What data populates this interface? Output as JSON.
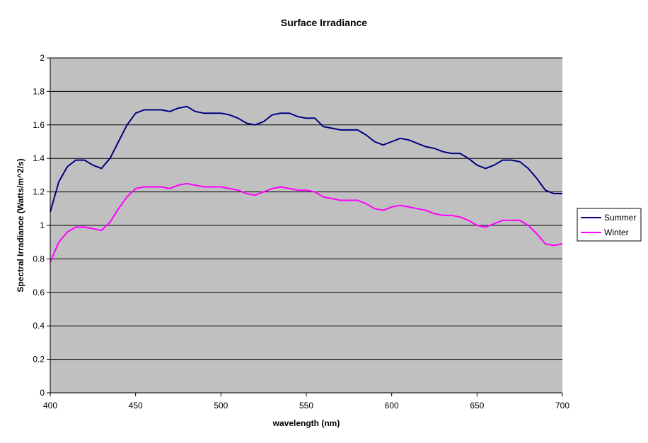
{
  "chart_data": {
    "type": "line",
    "title": "Surface Irradiance",
    "xlabel": "wavelength (nm)",
    "ylabel": "Spectral Irradiance (Watts/m^2/s)",
    "xlim": [
      400,
      700
    ],
    "ylim": [
      0,
      2
    ],
    "x_ticks": [
      "400",
      "450",
      "500",
      "550",
      "600",
      "650",
      "700"
    ],
    "y_ticks": [
      "0",
      "0.2",
      "0.4",
      "0.6",
      "0.8",
      "1",
      "1.2",
      "1.4",
      "1.6",
      "1.8",
      "2"
    ],
    "grid": "horizontal",
    "legend_position": "right",
    "plot_background": "#c0c0c0",
    "series": [
      {
        "name": "Summer",
        "color": "#000080",
        "x": [
          400,
          405,
          410,
          415,
          420,
          425,
          430,
          435,
          440,
          445,
          450,
          455,
          460,
          465,
          470,
          475,
          480,
          485,
          490,
          495,
          500,
          505,
          510,
          515,
          520,
          525,
          530,
          535,
          540,
          545,
          550,
          555,
          560,
          565,
          570,
          575,
          580,
          585,
          590,
          595,
          600,
          605,
          610,
          615,
          620,
          625,
          630,
          635,
          640,
          645,
          650,
          655,
          660,
          665,
          670,
          675,
          680,
          685,
          690,
          695,
          700
        ],
        "y": [
          1.08,
          1.26,
          1.35,
          1.39,
          1.39,
          1.36,
          1.34,
          1.4,
          1.5,
          1.6,
          1.67,
          1.69,
          1.69,
          1.69,
          1.68,
          1.7,
          1.71,
          1.68,
          1.67,
          1.67,
          1.67,
          1.66,
          1.64,
          1.61,
          1.6,
          1.62,
          1.66,
          1.67,
          1.67,
          1.65,
          1.64,
          1.64,
          1.59,
          1.58,
          1.57,
          1.57,
          1.57,
          1.54,
          1.5,
          1.48,
          1.5,
          1.52,
          1.51,
          1.49,
          1.47,
          1.46,
          1.44,
          1.43,
          1.43,
          1.4,
          1.36,
          1.34,
          1.36,
          1.39,
          1.39,
          1.38,
          1.34,
          1.28,
          1.21,
          1.19,
          1.19
        ]
      },
      {
        "name": "Winter",
        "color": "#ff00ff",
        "x": [
          400,
          405,
          410,
          415,
          420,
          425,
          430,
          435,
          440,
          445,
          450,
          455,
          460,
          465,
          470,
          475,
          480,
          485,
          490,
          495,
          500,
          505,
          510,
          515,
          520,
          525,
          530,
          535,
          540,
          545,
          550,
          555,
          560,
          565,
          570,
          575,
          580,
          585,
          590,
          595,
          600,
          605,
          610,
          615,
          620,
          625,
          630,
          635,
          640,
          645,
          650,
          655,
          660,
          665,
          670,
          675,
          680,
          685,
          690,
          695,
          700
        ],
        "y": [
          0.78,
          0.9,
          0.96,
          0.99,
          0.99,
          0.98,
          0.97,
          1.02,
          1.1,
          1.17,
          1.22,
          1.23,
          1.23,
          1.23,
          1.22,
          1.24,
          1.25,
          1.24,
          1.23,
          1.23,
          1.23,
          1.22,
          1.21,
          1.19,
          1.18,
          1.2,
          1.22,
          1.23,
          1.22,
          1.21,
          1.21,
          1.2,
          1.17,
          1.16,
          1.15,
          1.15,
          1.15,
          1.13,
          1.1,
          1.09,
          1.11,
          1.12,
          1.11,
          1.1,
          1.09,
          1.07,
          1.06,
          1.06,
          1.05,
          1.03,
          1.0,
          0.99,
          1.01,
          1.03,
          1.03,
          1.03,
          1.0,
          0.95,
          0.89,
          0.88,
          0.89
        ]
      }
    ]
  }
}
